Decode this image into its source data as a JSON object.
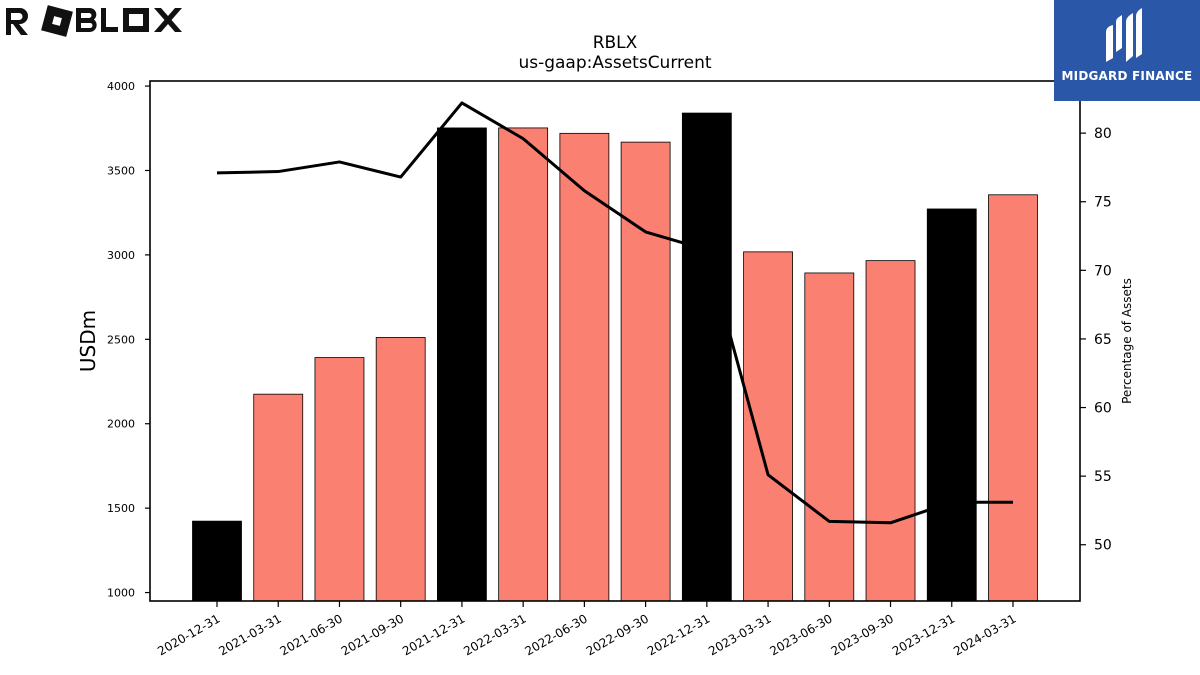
{
  "chart_data": {
    "type": "bar",
    "title": "RBLX",
    "subtitle": "us-gaap:AssetsCurrent",
    "ylabel": "USDm",
    "y2label": "Percentage of Assets",
    "ylim": [
      950,
      4030
    ],
    "y2lim": [
      45.9,
      83.8
    ],
    "yticks": [
      1000,
      1500,
      2000,
      2500,
      3000,
      3500,
      4000
    ],
    "y2ticks": [
      50,
      55,
      60,
      65,
      70,
      75,
      80
    ],
    "categories": [
      "2020-12-31",
      "2021-03-31",
      "2021-06-30",
      "2021-09-30",
      "2021-12-31",
      "2022-03-31",
      "2022-06-30",
      "2022-09-30",
      "2022-12-31",
      "2023-03-31",
      "2023-06-30",
      "2023-09-30",
      "2023-12-31",
      "2024-03-31"
    ],
    "series": [
      {
        "kind": "bar",
        "values": [
          1423,
          2175,
          2392,
          2511,
          3752,
          3752,
          3720,
          3668,
          3840,
          3018,
          2893,
          2966,
          3272,
          3356
        ],
        "year_end_color": "#000000",
        "quarter_color": "#fa8072"
      },
      {
        "kind": "line",
        "axis": "right",
        "color": "#000000",
        "values": [
          77.1,
          77.2,
          77.9,
          76.8,
          82.2,
          79.6,
          75.8,
          72.8,
          71.5,
          55.1,
          51.7,
          51.6,
          53.1,
          53.1
        ]
      }
    ],
    "grid": false
  },
  "logos": {
    "left": "ROBLOX",
    "right": "MIDGARD FINANCE"
  }
}
